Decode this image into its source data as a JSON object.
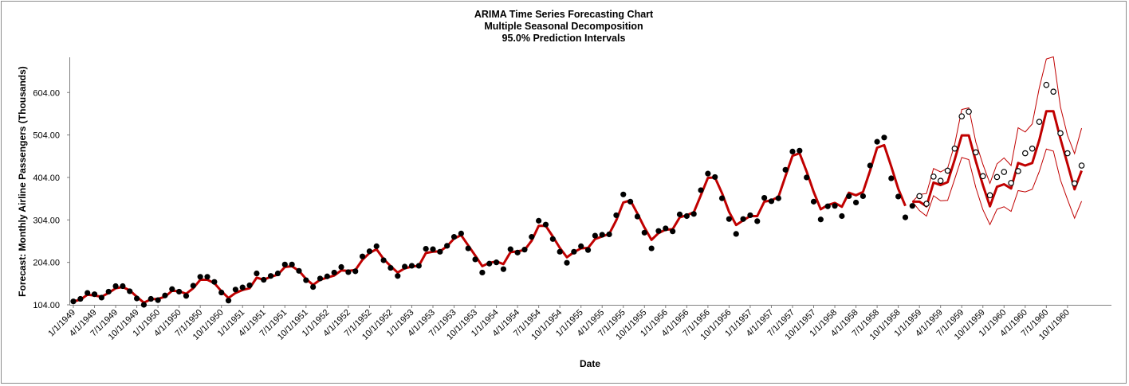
{
  "chart_data": {
    "type": "line",
    "title": "ARIMA Time Series Forecasting Chart",
    "subtitle_1": "Multiple Seasonal Decomposition",
    "subtitle_2": "95.0% Prediction Intervals",
    "xlabel": "Date",
    "ylabel": "Forecast: Monthly Airline Passengers (Thousands)",
    "ylim": [
      104,
      704
    ],
    "yticks": [
      "104.00",
      "204.00",
      "304.00",
      "404.00",
      "504.00",
      "604.00"
    ],
    "start": "1/1/1949",
    "xtick_labels": [
      "1/1/1949",
      "4/1/1949",
      "7/1/1949",
      "10/1/1949",
      "1/1/1950",
      "4/1/1950",
      "7/1/1950",
      "10/1/1950",
      "1/1/1951",
      "4/1/1951",
      "7/1/1951",
      "10/1/1951",
      "1/1/1952",
      "4/1/1952",
      "7/1/1952",
      "10/1/1952",
      "1/1/1953",
      "4/1/1953",
      "7/1/1953",
      "10/1/1953",
      "1/1/1954",
      "4/1/1954",
      "7/1/1954",
      "10/1/1954",
      "1/1/1955",
      "4/1/1955",
      "7/1/1955",
      "10/1/1955",
      "1/1/1956",
      "4/1/1956",
      "7/1/1956",
      "10/1/1956",
      "1/1/1957",
      "4/1/1957",
      "7/1/1957",
      "10/1/1957",
      "1/1/1958",
      "4/1/1958",
      "7/1/1958",
      "10/1/1958",
      "1/1/1959",
      "4/1/1959",
      "7/1/1959",
      "10/1/1959",
      "1/1/1960",
      "4/1/1960",
      "7/1/1960",
      "10/1/1960"
    ],
    "grid": false,
    "legend": "none",
    "colors": {
      "fit": "#c00000",
      "interval": "#c00000",
      "actual": "#000000",
      "holdout": "#000000"
    },
    "actual": [
      112,
      118,
      132,
      129,
      121,
      135,
      148,
      148,
      136,
      119,
      104,
      118,
      115,
      126,
      141,
      135,
      125,
      149,
      170,
      170,
      158,
      133,
      114,
      140,
      145,
      150,
      178,
      163,
      172,
      178,
      199,
      199,
      184,
      162,
      146,
      166,
      171,
      180,
      193,
      181,
      183,
      218,
      230,
      242,
      209,
      191,
      172,
      194,
      196,
      196,
      236,
      235,
      229,
      243,
      264,
      272,
      237,
      211,
      180,
      201,
      204,
      188,
      235,
      227,
      234,
      264,
      302,
      293,
      259,
      229,
      203,
      229,
      242,
      233,
      267,
      269,
      270,
      315,
      364,
      347,
      312,
      274,
      237,
      278,
      284,
      277,
      317,
      313,
      318,
      374,
      413,
      405,
      355,
      306,
      271,
      306,
      315,
      301,
      356,
      348,
      355,
      422,
      465,
      467,
      404,
      347,
      305,
      336,
      337,
      313,
      360,
      345,
      360,
      432,
      488,
      498,
      402,
      359,
      310,
      337
    ],
    "fitted": [
      112,
      116,
      128,
      126,
      123,
      132,
      143,
      146,
      138,
      123,
      109,
      117,
      118,
      123,
      137,
      136,
      130,
      143,
      163,
      163,
      155,
      136,
      120,
      132,
      139,
      143,
      168,
      163,
      170,
      175,
      193,
      195,
      184,
      165,
      151,
      163,
      168,
      173,
      185,
      184,
      186,
      210,
      226,
      235,
      212,
      195,
      180,
      190,
      194,
      196,
      226,
      229,
      230,
      242,
      260,
      268,
      244,
      220,
      195,
      203,
      206,
      200,
      228,
      230,
      233,
      255,
      290,
      290,
      265,
      238,
      216,
      228,
      237,
      238,
      259,
      265,
      271,
      303,
      345,
      350,
      319,
      286,
      257,
      273,
      281,
      282,
      310,
      315,
      322,
      362,
      403,
      404,
      367,
      323,
      292,
      303,
      313,
      313,
      347,
      350,
      358,
      407,
      455,
      461,
      418,
      370,
      329,
      339,
      344,
      335,
      368,
      362,
      370,
      420,
      474,
      480,
      430,
      377,
      337
    ],
    "holdout": [
      360,
      342,
      406,
      396,
      420,
      472,
      548,
      559,
      463,
      407,
      362,
      405,
      417,
      391,
      419,
      461,
      472,
      535,
      622,
      606,
      508,
      461,
      390,
      432
    ],
    "forecast": [
      347,
      347,
      336,
      392,
      386,
      393,
      446,
      503,
      503,
      442,
      386,
      336,
      382,
      388,
      378,
      438,
      432,
      438,
      492,
      560,
      560,
      495,
      436,
      376,
      420
    ],
    "upper": [
      347,
      364,
      366,
      425,
      417,
      426,
      482,
      564,
      568,
      487,
      435,
      390,
      436,
      450,
      432,
      521,
      511,
      530,
      615,
      683,
      688,
      570,
      503,
      460,
      520
    ],
    "lower": [
      347,
      326,
      313,
      361,
      349,
      350,
      400,
      451,
      446,
      380,
      328,
      293,
      329,
      335,
      324,
      373,
      370,
      376,
      418,
      471,
      466,
      398,
      352,
      308,
      348
    ]
  }
}
